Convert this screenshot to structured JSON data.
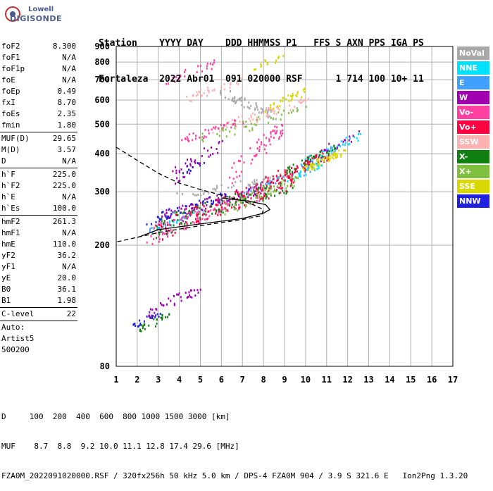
{
  "logo": {
    "line1": "Lowell",
    "line2": "DIGISONDE"
  },
  "header": {
    "labels": "Station    YYYY DAY    DDD HHMMSS P1   FFS S AXN PPS IGA PS",
    "values": "Fortaleza  2022 Abr01  091 020000 RSF      1 714 100 10+ 11"
  },
  "params": [
    {
      "k": "foF2",
      "v": "8.300"
    },
    {
      "k": "foF1",
      "v": "N/A"
    },
    {
      "k": "foF1p",
      "v": "N/A"
    },
    {
      "k": "foE",
      "v": "N/A"
    },
    {
      "k": "foEp",
      "v": "0.49"
    },
    {
      "k": "fxI",
      "v": "8.70"
    },
    {
      "k": "foEs",
      "v": "2.35"
    },
    {
      "k": "fmin",
      "v": "1.80"
    },
    {
      "sep": true
    },
    {
      "k": "MUF(D)",
      "v": "29.65"
    },
    {
      "k": "M(D)",
      "v": "3.57"
    },
    {
      "k": "D",
      "v": "N/A"
    },
    {
      "sep": true
    },
    {
      "k": "h`F",
      "v": "225.0"
    },
    {
      "k": "h`F2",
      "v": "225.0"
    },
    {
      "k": "h`E",
      "v": "N/A"
    },
    {
      "k": "h`Es",
      "v": "100.0"
    },
    {
      "sep": true
    },
    {
      "k": "hmF2",
      "v": "261.3"
    },
    {
      "k": "hmF1",
      "v": "N/A"
    },
    {
      "k": "hmE",
      "v": "110.0"
    },
    {
      "k": "yF2",
      "v": "36.2"
    },
    {
      "k": "yF1",
      "v": "N/A"
    },
    {
      "k": "yE",
      "v": "20.0"
    },
    {
      "k": "B0",
      "v": "36.1"
    },
    {
      "k": "B1",
      "v": "1.98"
    },
    {
      "sep": true
    },
    {
      "k": "C-level",
      "v": "22"
    },
    {
      "sep": true
    },
    {
      "k": "Auto:",
      "v": ""
    },
    {
      "k": "Artist5",
      "v": ""
    },
    {
      "k": "500200",
      "v": ""
    }
  ],
  "legend": [
    {
      "label": "NoVal",
      "color": "#a8a8a8"
    },
    {
      "label": "NNE",
      "color": "#00e0ff"
    },
    {
      "label": "E",
      "color": "#40a0ff"
    },
    {
      "label": "W",
      "color": "#a000b0"
    },
    {
      "label": "Vo-",
      "color": "#ff40a0"
    },
    {
      "label": "Vo+",
      "color": "#ff0040"
    },
    {
      "label": "SSW",
      "color": "#ffb0b0"
    },
    {
      "label": "X-",
      "color": "#108010"
    },
    {
      "label": "X+",
      "color": "#80c040"
    },
    {
      "label": "SSE",
      "color": "#d8d800"
    },
    {
      "label": "NNW",
      "color": "#2020e0"
    }
  ],
  "footer": {
    "line1": "D     100  200  400  600  800 1000 1500 3000 [km]",
    "line2": "MUF    8.7  8.8  9.2 10.0 11.1 12.8 17.4 29.6 [MHz]",
    "line3": "FZA0M_2022091020000.RSF / 320fx256h 50 kHz 5.0 km / DPS-4 FZA0M 904 / 3.9 S 321.6 E   Ion2Png 1.3.20"
  },
  "chart_data": {
    "type": "scatter",
    "xlabel": "",
    "ylabel": "",
    "xlim": [
      1,
      17
    ],
    "ylim": [
      80,
      900
    ],
    "y_scale": "log",
    "x_ticks": [
      1,
      2,
      3,
      4,
      5,
      6,
      7,
      8,
      9,
      10,
      11,
      12,
      13,
      14,
      15,
      16,
      17
    ],
    "y_ticks": [
      80,
      200,
      300,
      400,
      500,
      600,
      700,
      800,
      900
    ],
    "grid": true,
    "legend_position": "right",
    "series": [
      {
        "name": "NoVal",
        "color": "#a8a8a8",
        "clusters": [
          [
            6.0,
            640,
            8.5,
            530,
            60
          ],
          [
            4.0,
            290,
            9.0,
            340,
            50
          ]
        ]
      },
      {
        "name": "NNE",
        "color": "#00e0ff",
        "clusters": [
          [
            10.0,
            370,
            12.5,
            460,
            40
          ],
          [
            9.0,
            330,
            11.0,
            380,
            30
          ],
          [
            3.0,
            230,
            5.0,
            260,
            20
          ]
        ]
      },
      {
        "name": "E",
        "color": "#40a0ff",
        "clusters": [
          [
            9.5,
            340,
            11.5,
            420,
            40
          ],
          [
            7.0,
            300,
            9.0,
            340,
            30
          ],
          [
            2.5,
            225,
            4.5,
            250,
            20
          ]
        ]
      },
      {
        "name": "W",
        "color": "#a000b0",
        "clusters": [
          [
            3.0,
            250,
            8.0,
            310,
            90
          ],
          [
            2.5,
            120,
            5.0,
            145,
            40
          ],
          [
            3.5,
            330,
            6.0,
            430,
            40
          ],
          [
            10.0,
            380,
            12.5,
            470,
            20
          ]
        ]
      },
      {
        "name": "Vo-",
        "color": "#ff40a0",
        "clusters": [
          [
            2.6,
            215,
            8.0,
            300,
            120
          ],
          [
            6.5,
            340,
            9.0,
            500,
            60
          ],
          [
            4.0,
            440,
            7.0,
            520,
            40
          ],
          [
            3.5,
            690,
            6.0,
            820,
            25
          ]
        ]
      },
      {
        "name": "Vo+",
        "color": "#ff0040",
        "clusters": [
          [
            2.7,
            220,
            9.5,
            330,
            120
          ],
          [
            8.0,
            320,
            11.0,
            400,
            60
          ]
        ]
      },
      {
        "name": "SSW",
        "color": "#ffb0b0",
        "clusters": [
          [
            5.5,
            480,
            10.0,
            600,
            50
          ],
          [
            4.0,
            600,
            7.0,
            700,
            30
          ]
        ]
      },
      {
        "name": "X-",
        "color": "#108010",
        "clusters": [
          [
            2.8,
            228,
            9.5,
            320,
            100
          ],
          [
            9.0,
            350,
            11.5,
            420,
            40
          ],
          [
            2.0,
            105,
            3.5,
            120,
            25
          ]
        ]
      },
      {
        "name": "X+",
        "color": "#80c040",
        "clusters": [
          [
            6.0,
            260,
            9.5,
            330,
            60
          ],
          [
            5.0,
            450,
            10.0,
            560,
            40
          ]
        ]
      },
      {
        "name": "SSE",
        "color": "#d8d800",
        "clusters": [
          [
            10.0,
            360,
            11.8,
            410,
            60
          ],
          [
            8.0,
            560,
            10.0,
            650,
            30
          ],
          [
            7.5,
            760,
            9.0,
            850,
            15
          ]
        ]
      },
      {
        "name": "NNW",
        "color": "#2020e0",
        "clusters": [
          [
            2.5,
            240,
            6.0,
            290,
            40
          ],
          [
            1.8,
            110,
            3.0,
            120,
            20
          ],
          [
            4.0,
            340,
            5.0,
            380,
            10
          ]
        ]
      }
    ],
    "profile_dashed": [
      [
        1.0,
        420
      ],
      [
        2.0,
        380
      ],
      [
        3.0,
        345
      ],
      [
        4.0,
        320
      ],
      [
        5.0,
        305
      ],
      [
        6.0,
        292
      ],
      [
        7.0,
        280
      ],
      [
        7.5,
        272
      ],
      [
        8.0,
        262
      ],
      [
        7.9,
        250
      ],
      [
        7.0,
        243
      ],
      [
        5.0,
        232
      ],
      [
        3.0,
        220
      ],
      [
        1.0,
        205
      ]
    ],
    "profile_solid": [
      [
        2.0,
        212
      ],
      [
        3.0,
        225
      ],
      [
        5.0,
        235
      ],
      [
        7.0,
        245
      ],
      [
        8.0,
        255
      ],
      [
        8.3,
        262
      ],
      [
        8.1,
        272
      ],
      [
        7.2,
        280
      ],
      [
        6.0,
        286
      ]
    ]
  }
}
